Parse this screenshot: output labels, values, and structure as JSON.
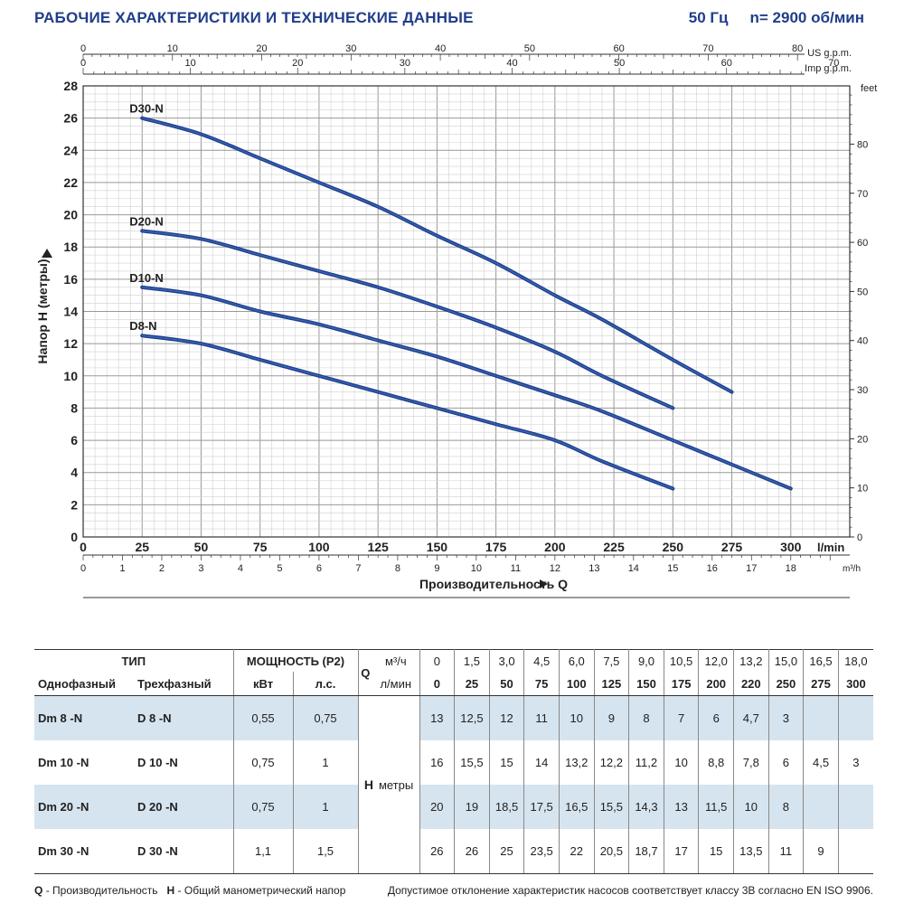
{
  "header": {
    "title": "РАБОЧИЕ ХАРАКТЕРИСТИКИ И ТЕХНИЧЕСКИЕ ДАННЫЕ",
    "frequency": "50 Гц",
    "speed": "n= 2900 об/мин"
  },
  "chart_data": {
    "type": "line",
    "xlabel": "Производительность Q",
    "ylabel": "Напор H (метры)",
    "x_unit": "l/min",
    "y_unit": "",
    "xlim": [
      0,
      325
    ],
    "ylim": [
      0,
      28
    ],
    "grid": true,
    "x_ticks": [
      "0",
      "25",
      "50",
      "75",
      "100",
      "125",
      "150",
      "175",
      "200",
      "225",
      "250",
      "275",
      "300"
    ],
    "y_ticks": [
      "0",
      "2",
      "4",
      "6",
      "8",
      "10",
      "12",
      "14",
      "16",
      "18",
      "20",
      "22",
      "24",
      "26",
      "28"
    ],
    "feet_unit": "feet",
    "feet_ticks": [
      "0",
      "10",
      "20",
      "30",
      "40",
      "50",
      "60",
      "70",
      "80"
    ],
    "m3h_unit": "m³/h",
    "m3h_ticks": [
      "0",
      "1",
      "2",
      "3",
      "4",
      "5",
      "6",
      "7",
      "8",
      "9",
      "10",
      "11",
      "12",
      "13",
      "14",
      "15",
      "16",
      "17",
      "18"
    ],
    "us_unit": "US g.p.m.",
    "us_ticks": [
      "0",
      "10",
      "20",
      "30",
      "40",
      "50",
      "60",
      "70",
      "80"
    ],
    "imp_unit": "Imp g.p.m.",
    "imp_ticks": [
      "0",
      "10",
      "20",
      "30",
      "40",
      "50",
      "60",
      "70"
    ],
    "series": [
      {
        "name": "D30-N",
        "x": [
          25,
          50,
          75,
          100,
          125,
          150,
          175,
          200,
          220,
          250,
          275
        ],
        "y": [
          26,
          25,
          23.5,
          22,
          20.5,
          18.7,
          17,
          15,
          13.5,
          11,
          9
        ]
      },
      {
        "name": "D20-N",
        "x": [
          25,
          50,
          75,
          100,
          125,
          150,
          175,
          200,
          220,
          250
        ],
        "y": [
          19,
          18.5,
          17.5,
          16.5,
          15.5,
          14.3,
          13,
          11.5,
          10,
          8
        ]
      },
      {
        "name": "D10-N",
        "x": [
          25,
          50,
          75,
          100,
          125,
          150,
          175,
          200,
          220,
          250,
          275,
          300
        ],
        "y": [
          15.5,
          15,
          14,
          13.2,
          12.2,
          11.2,
          10,
          8.8,
          7.8,
          6,
          4.5,
          3
        ]
      },
      {
        "name": "D8-N",
        "x": [
          25,
          50,
          75,
          100,
          125,
          150,
          175,
          200,
          220,
          250
        ],
        "y": [
          12.5,
          12,
          11,
          10,
          9,
          8,
          7,
          6,
          4.7,
          3
        ]
      }
    ]
  },
  "table": {
    "type_header": "ТИП",
    "power_header": "МОЩНОСТЬ (P2)",
    "single_phase": "Однофазный",
    "three_phase": "Трехфазный",
    "kw": "кВт",
    "hp": "л.с.",
    "q_label": "Q",
    "q_unit_m3": "м³/ч",
    "q_unit_lmin": "л/мин",
    "h_label": "H",
    "h_unit": "метры",
    "q_m3h": [
      "0",
      "1,5",
      "3,0",
      "4,5",
      "6,0",
      "7,5",
      "9,0",
      "10,5",
      "12,0",
      "13,2",
      "15,0",
      "16,5",
      "18,0"
    ],
    "q_lmin": [
      "0",
      "25",
      "50",
      "75",
      "100",
      "125",
      "150",
      "175",
      "200",
      "220",
      "250",
      "275",
      "300"
    ],
    "rows": [
      {
        "single": "Dm 8 -N",
        "three": "D 8 -N",
        "kw": "0,55",
        "hp": "0,75",
        "h": [
          "13",
          "12,5",
          "12",
          "11",
          "10",
          "9",
          "8",
          "7",
          "6",
          "4,7",
          "3",
          "",
          ""
        ]
      },
      {
        "single": "Dm 10 -N",
        "three": "D 10 -N",
        "kw": "0,75",
        "hp": "1",
        "h": [
          "16",
          "15,5",
          "15",
          "14",
          "13,2",
          "12,2",
          "11,2",
          "10",
          "8,8",
          "7,8",
          "6",
          "4,5",
          "3"
        ]
      },
      {
        "single": "Dm 20 -N",
        "three": "D 20 -N",
        "kw": "0,75",
        "hp": "1",
        "h": [
          "20",
          "19",
          "18,5",
          "17,5",
          "16,5",
          "15,5",
          "14,3",
          "13",
          "11,5",
          "10",
          "8",
          "",
          ""
        ]
      },
      {
        "single": "Dm 30 -N",
        "three": "D 30 -N",
        "kw": "1,1",
        "hp": "1,5",
        "h": [
          "26",
          "26",
          "25",
          "23,5",
          "22",
          "20,5",
          "18,7",
          "17",
          "15",
          "13,5",
          "11",
          "9",
          ""
        ]
      }
    ]
  },
  "footer": {
    "q_key": "Q",
    "q_desc": "- Производительность",
    "h_key": "H",
    "h_desc": "- Общий манометрический напор",
    "tolerance": "Допустимое отклонение характеристик насосов соответствует классу 3B согласно EN ISO 9906."
  },
  "colors": {
    "curve": "#1e3f8f",
    "curve_light": "#4a7ac0",
    "title": "#1f3d8a",
    "shade": "#d6e4ef",
    "grid": "#bbbbbb"
  }
}
